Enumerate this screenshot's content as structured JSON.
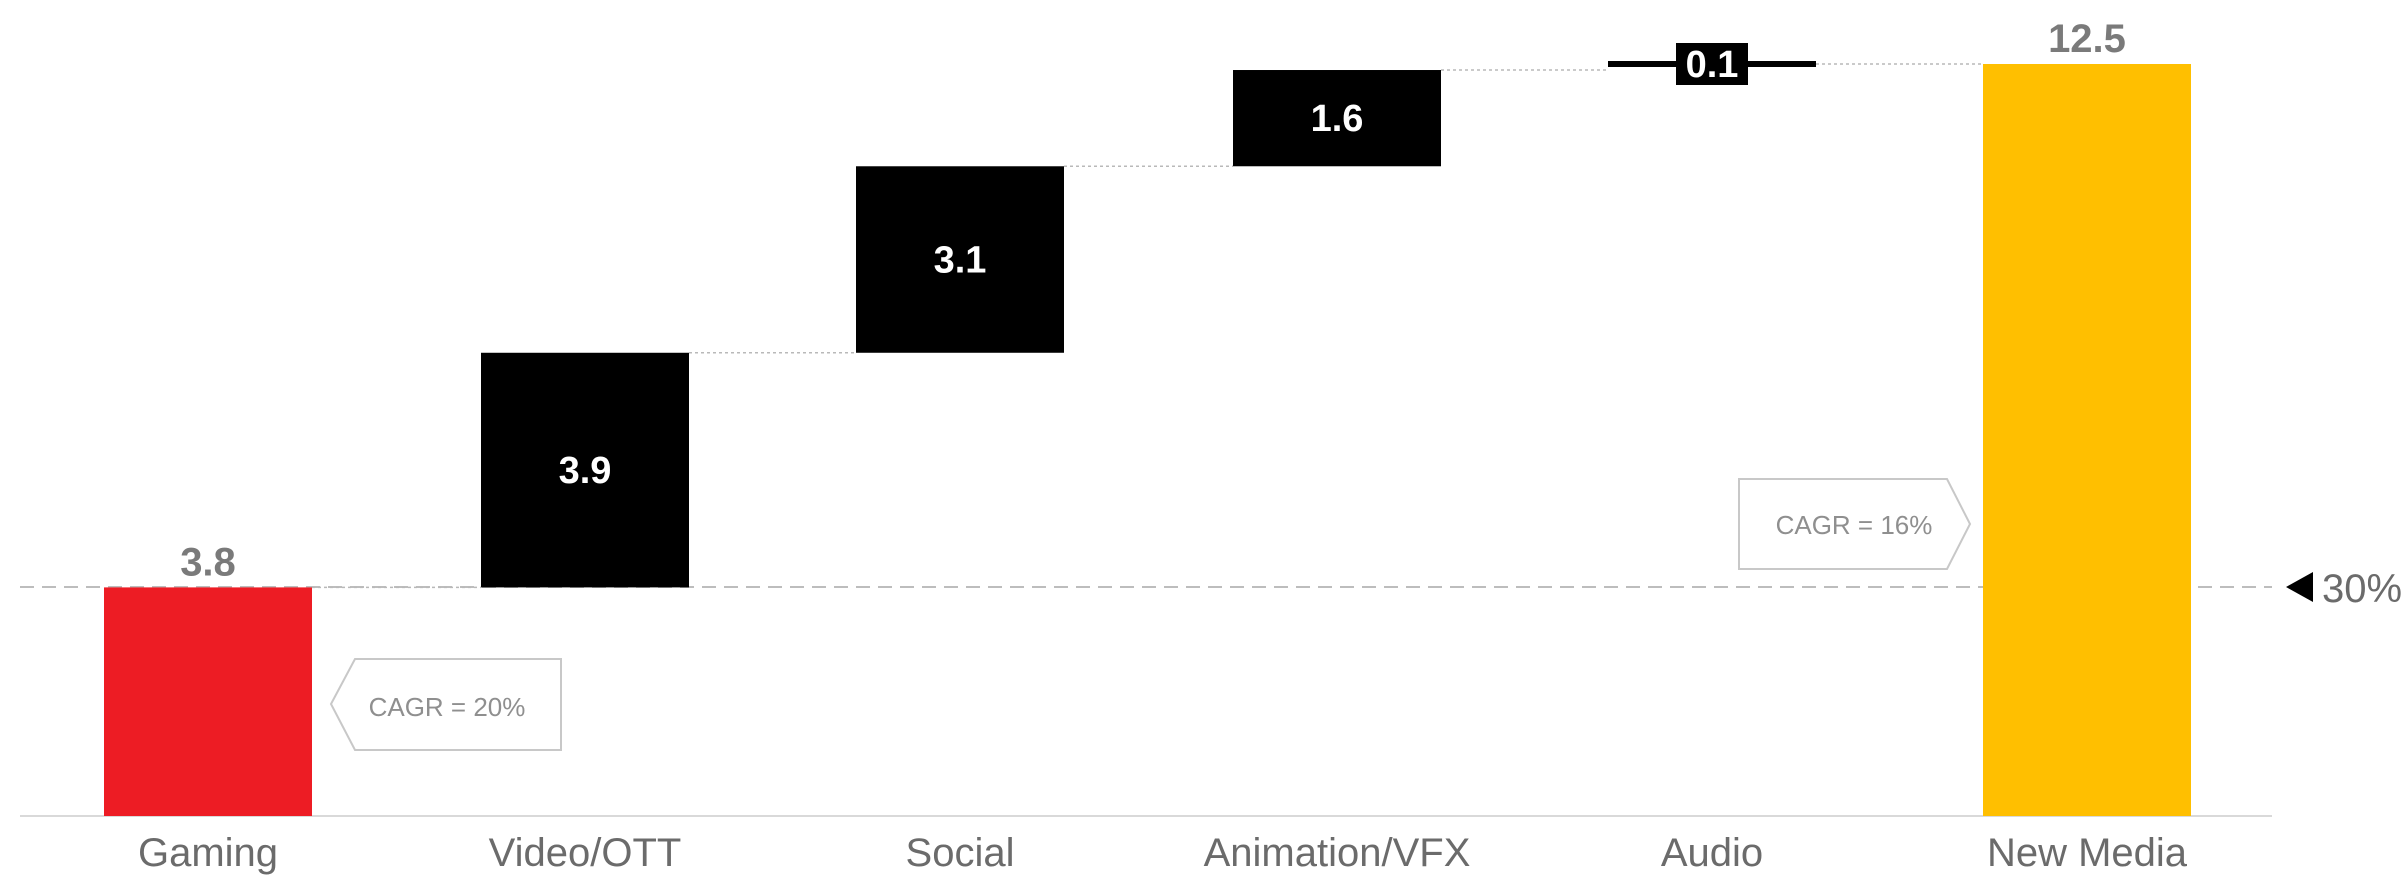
{
  "chart_data": {
    "type": "waterfall",
    "categories": [
      "Gaming",
      "Video/OTT",
      "Social",
      "Animation/VFX",
      "Audio",
      "New Media"
    ],
    "values": [
      3.8,
      3.9,
      3.1,
      1.6,
      0.1,
      12.5
    ],
    "kinds": [
      "total",
      "delta",
      "delta",
      "delta",
      "delta",
      "total"
    ],
    "labels": [
      "3.8",
      "3.9",
      "3.1",
      "1.6",
      "0.1",
      "12.5"
    ],
    "colors": {
      "start": "#ED1C24",
      "delta": "#000000",
      "end": "#FFBF00",
      "label_gray": "#7a7a7a",
      "guide": "#b9b9b9"
    },
    "ylim": [
      0,
      12.5
    ],
    "reference_line": {
      "value": 3.8,
      "label": "30%"
    },
    "callouts": [
      {
        "text": "CAGR = 20%",
        "near": "Gaming",
        "pointer": "left"
      },
      {
        "text": "CAGR = 16%",
        "near": "New Media",
        "pointer": "right"
      }
    ],
    "grid": false,
    "legend": "none"
  }
}
